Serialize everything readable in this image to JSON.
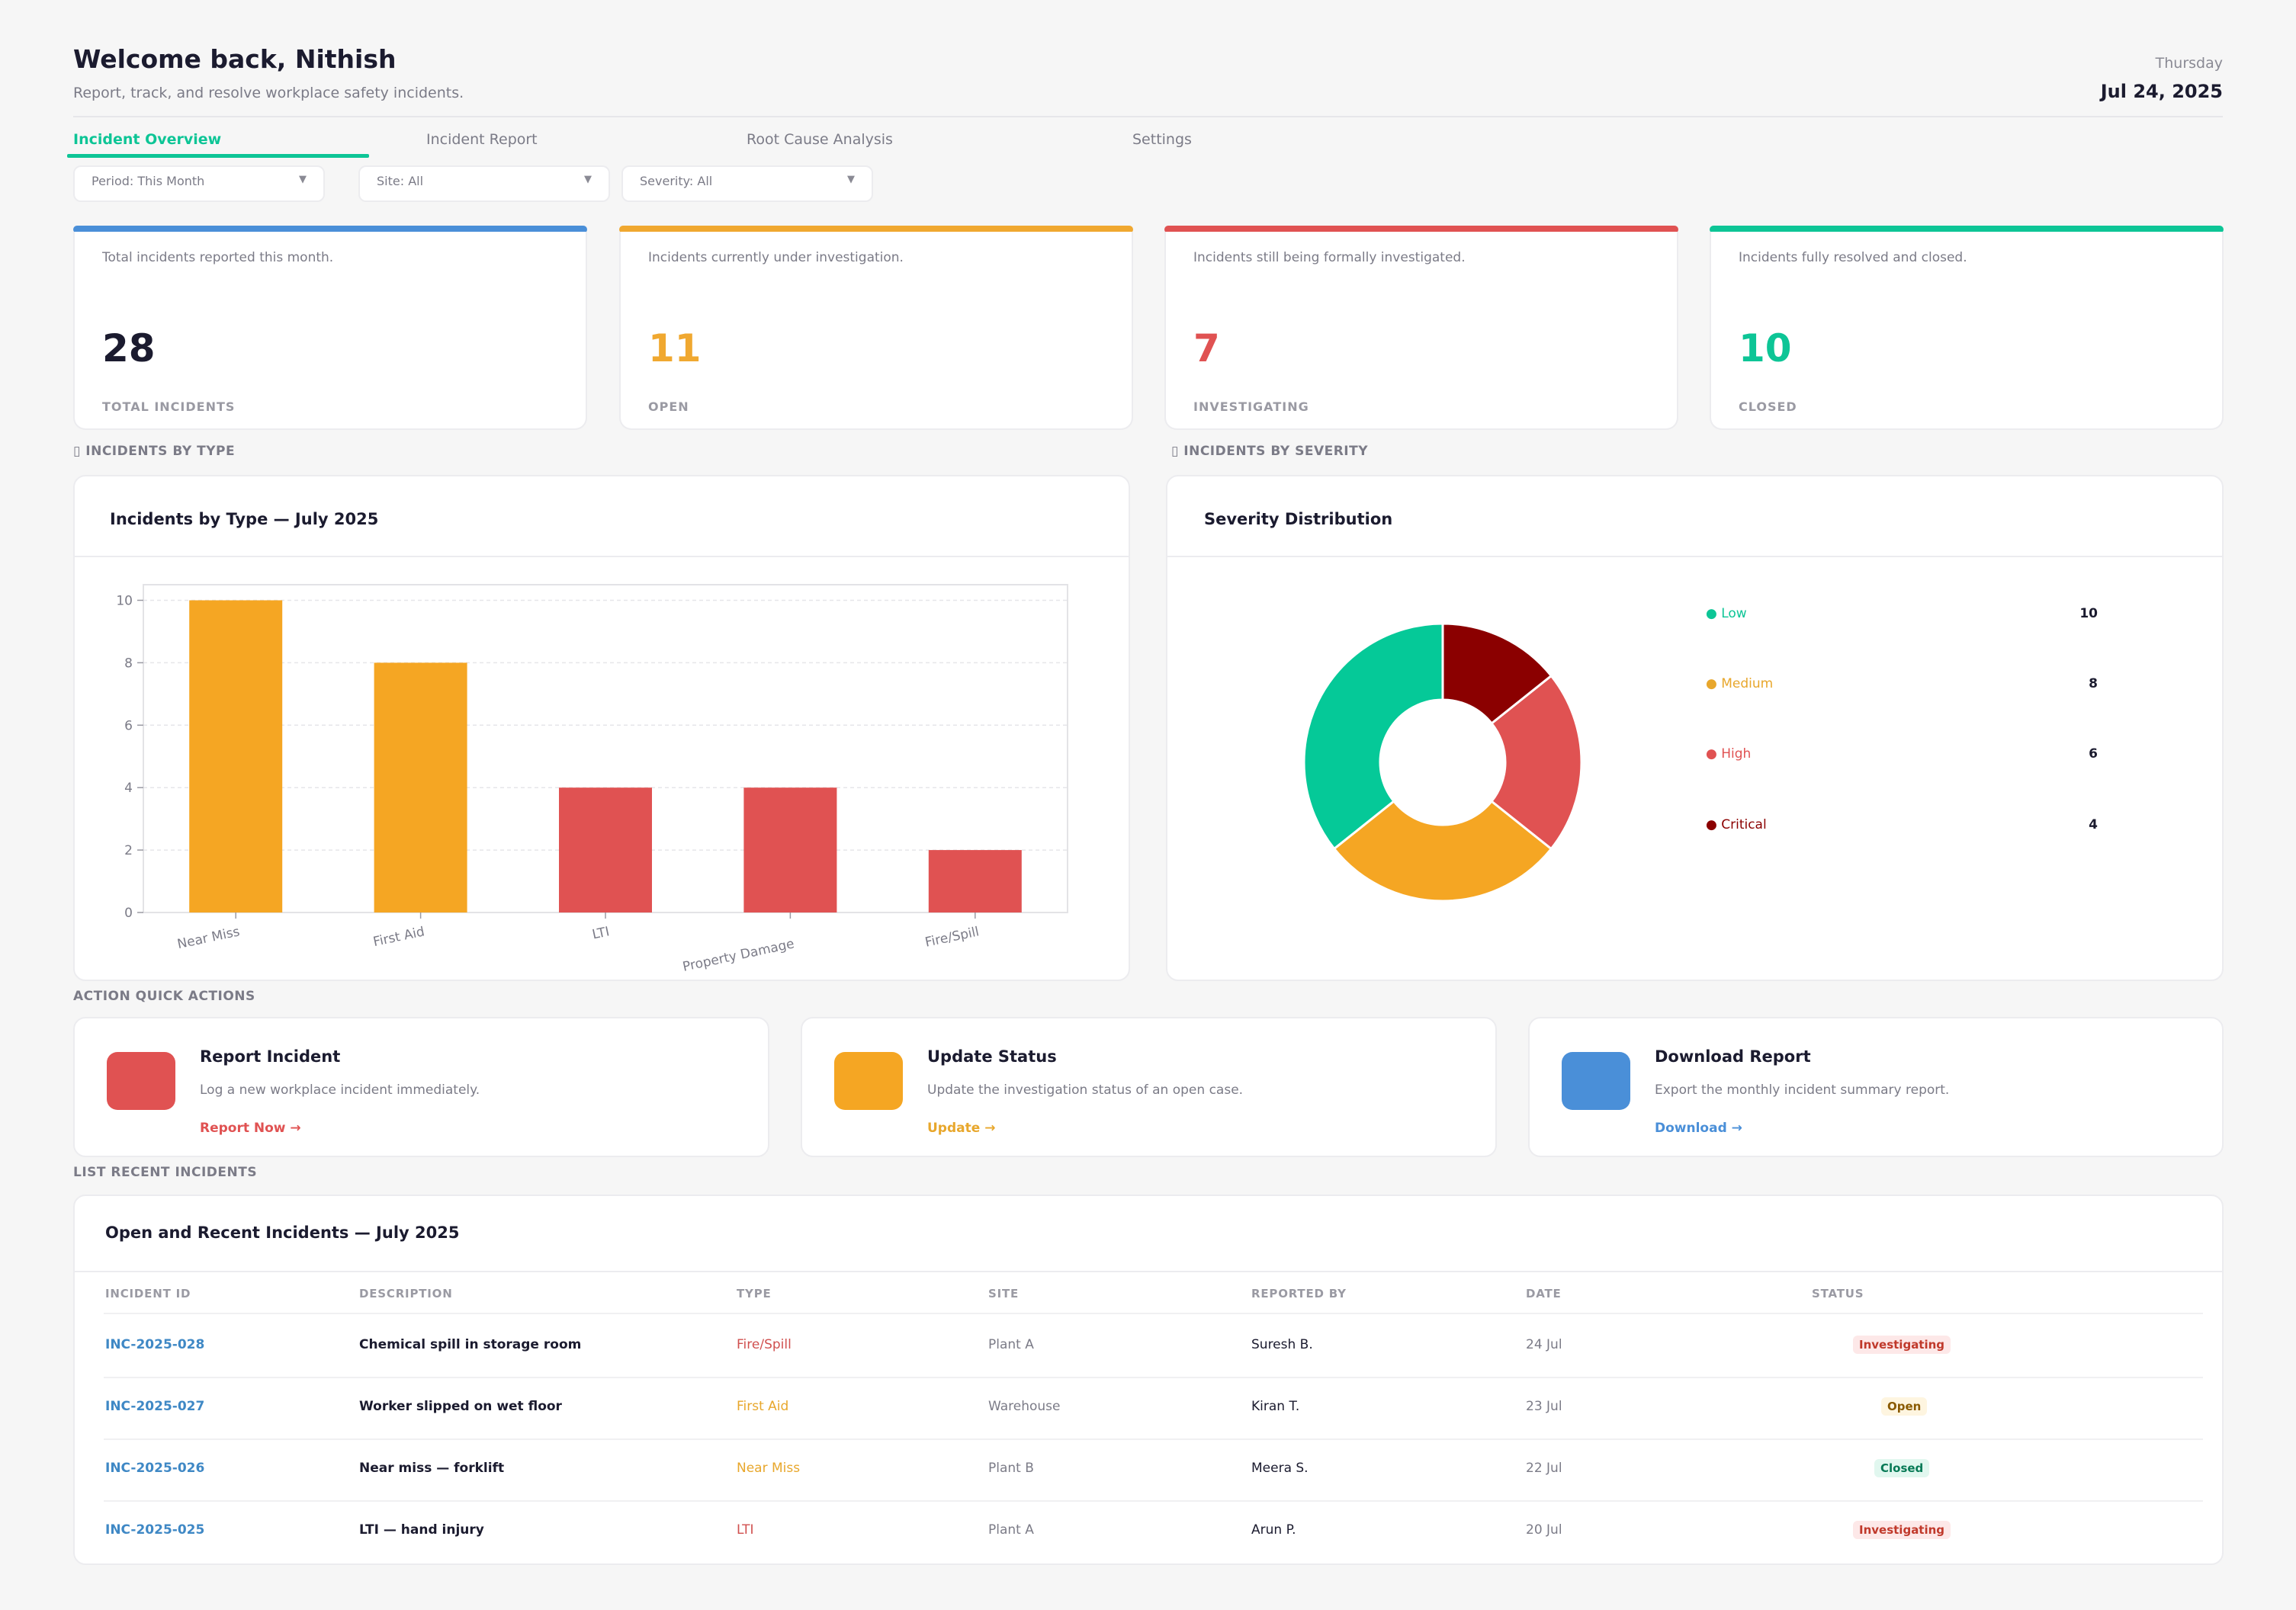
{
  "header": {
    "welcome": "Welcome back, Nithish",
    "subtitle": "Report, track, and resolve workplace safety incidents.",
    "day": "Thursday",
    "date": "Jul 24, 2025"
  },
  "tabs": [
    {
      "label": "Incident Overview",
      "active": true
    },
    {
      "label": "Incident Report"
    },
    {
      "label": "Root Cause Analysis"
    },
    {
      "label": "Settings"
    }
  ],
  "filters": [
    {
      "label": "Period: This Month"
    },
    {
      "label": "Site: All"
    },
    {
      "label": "Severity: All"
    }
  ],
  "kpis": [
    {
      "desc": "Total incidents reported this month.",
      "value": "28",
      "label": "TOTAL INCIDENTS",
      "color": "#4a8fd8",
      "value_color": "#1b1b2f"
    },
    {
      "desc": "Incidents currently under investigation.",
      "value": "11",
      "label": "OPEN",
      "color": "#f0a830",
      "value_color": "#f0a830"
    },
    {
      "desc": "Incidents still being formally investigated.",
      "value": "7",
      "label": "INVESTIGATING",
      "color": "#e05252",
      "value_color": "#e05252"
    },
    {
      "desc": "Incidents fully resolved and closed.",
      "value": "10",
      "label": "CLOSED",
      "color": "#0dc596",
      "value_color": "#0dc596"
    }
  ],
  "sections": {
    "by_type": "▯  INCIDENTS BY TYPE",
    "by_severity": "▯  INCIDENTS BY SEVERITY",
    "quick_actions": "ACTION  QUICK ACTIONS",
    "recent": "LIST  RECENT INCIDENTS"
  },
  "type_panel": {
    "title": "Incidents by Type — July 2025"
  },
  "severity_panel": {
    "title": "Severity Distribution"
  },
  "chart_data": [
    {
      "type": "bar",
      "title": "Incidents by Type — July 2025",
      "categories": [
        "Near Miss",
        "First Aid",
        "LTI",
        "Property Damage",
        "Fire/Spill"
      ],
      "values": [
        10,
        8,
        4,
        4,
        2
      ],
      "colors": [
        "#f5a623",
        "#f5a623",
        "#e05252",
        "#e05252",
        "#e05252"
      ],
      "ylim": [
        0,
        10.5
      ],
      "yticks": [
        0,
        2,
        4,
        6,
        8,
        10
      ],
      "grid": true
    },
    {
      "type": "pie",
      "title": "Severity Distribution",
      "donut": true,
      "labels": [
        "Low",
        "Medium",
        "High",
        "Critical"
      ],
      "values": [
        10,
        8,
        6,
        4
      ],
      "colors": [
        "#05c998",
        "#f5a623",
        "#e05252",
        "#8b0000"
      ],
      "legend": "right"
    }
  ],
  "legend": [
    {
      "label": "● Low",
      "value": "10",
      "color": "#0dc596"
    },
    {
      "label": "● Medium",
      "value": "8",
      "color": "#e8a72c"
    },
    {
      "label": "● High",
      "value": "6",
      "color": "#e05252"
    },
    {
      "label": "● Critical",
      "value": "4",
      "color": "#8b0000"
    }
  ],
  "quick_actions": [
    {
      "title": "Report Incident",
      "desc": "Log a new workplace incident immediately.",
      "link": "Report Now →",
      "color": "#e05252"
    },
    {
      "title": "Update Status",
      "desc": "Update the investigation status of an open case.",
      "link": "Update →",
      "color": "#f5a623"
    },
    {
      "title": "Download Report",
      "desc": "Export the monthly incident summary report.",
      "link": "Download →",
      "color": "#4a8fd8"
    }
  ],
  "table": {
    "title": "Open and Recent Incidents — July 2025",
    "headers": [
      "INCIDENT ID",
      "DESCRIPTION",
      "TYPE",
      "SITE",
      "REPORTED BY",
      "DATE",
      "STATUS"
    ],
    "rows": [
      {
        "id": "INC-2025-028",
        "desc": "Chemical spill in storage room",
        "type": "Fire/Spill",
        "type_color": "#d0504f",
        "site": "Plant A",
        "reporter": "Suresh B.",
        "date": "24 Jul",
        "status": "Investigating"
      },
      {
        "id": "INC-2025-027",
        "desc": "Worker slipped on wet floor",
        "type": "First Aid",
        "type_color": "#e8a72c",
        "site": "Warehouse",
        "reporter": "Kiran T.",
        "date": "23 Jul",
        "status": "Open"
      },
      {
        "id": "INC-2025-026",
        "desc": "Near miss — forklift",
        "type": "Near Miss",
        "type_color": "#e8a72c",
        "site": "Plant B",
        "reporter": "Meera S.",
        "date": "22 Jul",
        "status": "Closed"
      },
      {
        "id": "INC-2025-025",
        "desc": "LTI — hand injury",
        "type": "LTI",
        "type_color": "#d0504f",
        "site": "Plant A",
        "reporter": "Arun P.",
        "date": "20 Jul",
        "status": "Investigating"
      }
    ]
  }
}
